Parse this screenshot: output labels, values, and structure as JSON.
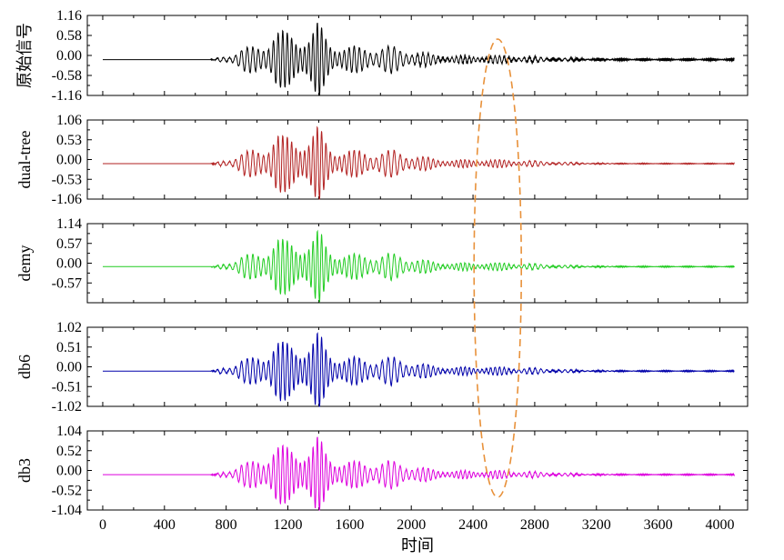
{
  "chart_data": {
    "type": "line",
    "xlabel": "时间",
    "xlim": [
      -100,
      4180
    ],
    "x_ticks": [
      0,
      400,
      800,
      1200,
      1600,
      2000,
      2400,
      2800,
      3200,
      3600,
      4000
    ],
    "x_tick_labels": [
      "0",
      "400",
      "800",
      "1200",
      "1600",
      "2000",
      "2400",
      "2800",
      "3200",
      "3600",
      "4000"
    ],
    "panels": [
      {
        "ylabel": "原始信号",
        "color": "#000000",
        "ylim": [
          -1.16,
          1.16
        ],
        "y_tick_labels": [
          "1.16",
          "0.58",
          "0.00",
          "-0.58",
          "-1.16"
        ],
        "baseline": -0.12,
        "noise": 0.05,
        "amp_scale": 1.0
      },
      {
        "ylabel": "dual-tree",
        "color": "#b22222",
        "ylim": [
          -1.06,
          1.06
        ],
        "y_tick_labels": [
          "1.06",
          "0.53",
          "0.00",
          "-0.53",
          "-1.06"
        ],
        "baseline": -0.11,
        "noise": 0.015,
        "amp_scale": 0.93
      },
      {
        "ylabel": "demy",
        "color": "#22cc22",
        "ylim": [
          -1.14,
          1.14
        ],
        "y_tick_labels": [
          "1.14",
          "0.57",
          "0.00",
          "-0.57"
        ],
        "baseline": -0.1,
        "noise": 0.02,
        "amp_scale": 0.97
      },
      {
        "ylabel": "db6",
        "color": "#0000aa",
        "ylim": [
          -1.02,
          1.02
        ],
        "y_tick_labels": [
          "1.02",
          "0.51",
          "0.00",
          "-0.51",
          "-1.02"
        ],
        "baseline": -0.11,
        "noise": 0.02,
        "amp_scale": 0.92
      },
      {
        "ylabel": "db3",
        "color": "#dd00dd",
        "ylim": [
          -1.04,
          1.04
        ],
        "y_tick_labels": [
          "1.04",
          "0.52",
          "0.00",
          "-0.52",
          "-1.04"
        ],
        "baseline": -0.11,
        "noise": 0.02,
        "amp_scale": 0.93
      }
    ],
    "annotation": {
      "shape": "ellipse",
      "style": "dashed",
      "color": "#e8913a",
      "x_center": 2560
    }
  }
}
